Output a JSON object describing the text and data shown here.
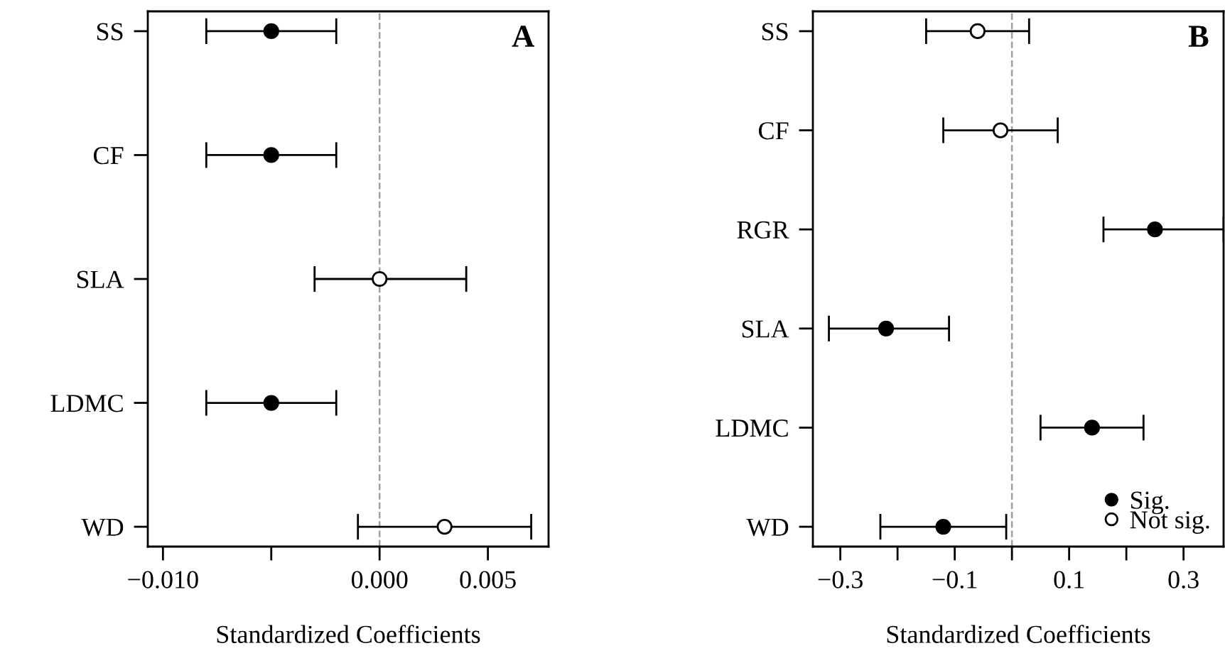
{
  "chart_data": [
    {
      "type": "scatter",
      "title": "A",
      "xlabel": "Standardized Coefficients",
      "orientation": "horizontal",
      "categories": [
        "SS",
        "CF",
        "SLA",
        "LDMC",
        "WD"
      ],
      "xlim": [
        -0.0107,
        0.0078
      ],
      "xticks": [
        {
          "value": -0.01,
          "label": "−0.010"
        },
        {
          "value": -0.005,
          "label": null
        },
        {
          "value": 0,
          "label": "0.000"
        },
        {
          "value": 0.005,
          "label": "0.005"
        }
      ],
      "legend": false,
      "marker": "circle",
      "series": [
        {
          "color": "#000000",
          "values": [
            -0.005,
            -0.005,
            null,
            -0.005,
            null
          ],
          "errors": [
            [
              -0.008,
              -0.002
            ],
            [
              -0.008,
              -0.002
            ],
            null,
            [
              -0.008,
              -0.002
            ],
            null
          ]
        },
        {
          "color": "#ffffff",
          "values": [
            null,
            null,
            0.0,
            null,
            0.003
          ],
          "errors": [
            null,
            null,
            [
              -0.003,
              0.004
            ],
            null,
            [
              -0.001,
              0.007
            ]
          ]
        }
      ],
      "ref_lines": [
        {
          "axis": "x",
          "value": 0,
          "color": "#a0a0a0",
          "line_style": "dashed"
        }
      ]
    },
    {
      "type": "scatter",
      "title": "B",
      "xlabel": "Standardized Coefficients",
      "orientation": "horizontal",
      "categories": [
        "SS",
        "CF",
        "RGR",
        "SLA",
        "LDMC",
        "WD"
      ],
      "xlim": [
        -0.348,
        0.37
      ],
      "xticks": [
        {
          "value": -0.3,
          "label": "−0.3"
        },
        {
          "value": -0.2,
          "label": null
        },
        {
          "value": -0.1,
          "label": "−0.1"
        },
        {
          "value": 0,
          "label": null
        },
        {
          "value": 0.1,
          "label": "0.1"
        },
        {
          "value": 0.2,
          "label": null
        },
        {
          "value": 0.3,
          "label": "0.3"
        }
      ],
      "legend": "bottom right",
      "marker": "circle",
      "series": [
        {
          "name": "Sig.",
          "color": "#000000",
          "values": [
            null,
            null,
            0.25,
            -0.22,
            0.14,
            -0.12
          ],
          "errors": [
            null,
            null,
            [
              0.16,
              0.37
            ],
            [
              -0.32,
              -0.11
            ],
            [
              0.05,
              0.23
            ],
            [
              -0.23,
              -0.01
            ]
          ]
        },
        {
          "name": "Not sig.",
          "color": "#ffffff",
          "values": [
            -0.06,
            -0.02,
            null,
            null,
            null,
            null
          ],
          "errors": [
            [
              -0.15,
              0.03
            ],
            [
              -0.12,
              0.08
            ],
            null,
            null,
            null,
            null
          ]
        }
      ],
      "ref_lines": [
        {
          "axis": "x",
          "value": 0,
          "color": "#a0a0a0",
          "line_style": "dashed"
        }
      ]
    }
  ]
}
